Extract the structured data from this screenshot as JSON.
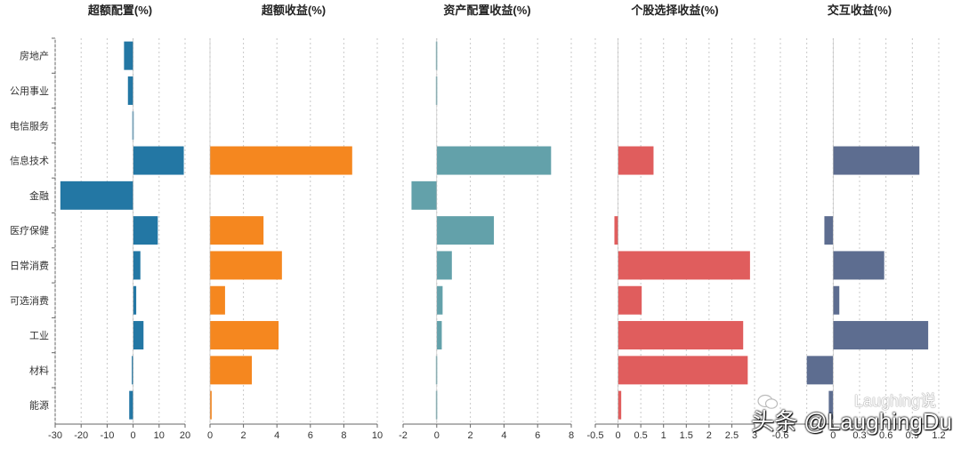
{
  "chart_data": {
    "type": "bar",
    "orientation": "horizontal",
    "categories": [
      "房地产",
      "公用事业",
      "电信服务",
      "信息技术",
      "金融",
      "医疗保健",
      "日常消费",
      "可选消费",
      "工业",
      "材料",
      "能源"
    ],
    "panels": [
      {
        "title": "超额配置(%)",
        "color": "#2377a4",
        "xlim": [
          -30,
          20
        ],
        "xticks": [
          -30,
          -20,
          -10,
          0,
          10,
          20
        ],
        "values": [
          -3.5,
          -2.0,
          -0.3,
          19.5,
          -28.0,
          9.5,
          2.8,
          1.2,
          4.0,
          -0.5,
          -1.5
        ]
      },
      {
        "title": "超额收益(%)",
        "color": "#f5871f",
        "xlim": [
          0,
          10
        ],
        "xticks": [
          0,
          2,
          4,
          6,
          8,
          10
        ],
        "values": [
          0,
          0,
          0,
          8.5,
          0,
          3.2,
          4.3,
          0.9,
          4.1,
          2.5,
          0.1
        ]
      },
      {
        "title": "资产配置收益(%)",
        "color": "#63a1aa",
        "xlim": [
          -2,
          8
        ],
        "xticks": [
          -2,
          0,
          2,
          4,
          6,
          8
        ],
        "values": [
          -0.05,
          -0.05,
          0,
          6.8,
          -1.5,
          3.4,
          0.9,
          0.35,
          0.3,
          -0.05,
          -0.05
        ]
      },
      {
        "title": "个股选择收益(%)",
        "color": "#e05d5d",
        "xlim": [
          -0.5,
          3
        ],
        "xticks": [
          -0.5,
          0,
          0.5,
          1,
          1.5,
          2,
          2.5,
          3
        ],
        "tick_labels": [
          "-0.5",
          "0",
          "0.5",
          "1",
          "1.5",
          "2",
          "2.5",
          "3"
        ],
        "values": [
          0,
          0,
          0,
          0.78,
          0,
          -0.08,
          2.9,
          0.52,
          2.75,
          2.85,
          0.07
        ]
      },
      {
        "title": "交互收益(%)",
        "color": "#5d6d90",
        "xlim": [
          -0.6,
          1.2
        ],
        "xticks": [
          -0.6,
          -0.3,
          0,
          0.3,
          0.6,
          0.9,
          1.2
        ],
        "tick_labels": [
          "-0.6",
          "",
          "0",
          "0.3",
          "0.6",
          "0.9",
          "1.2"
        ],
        "values": [
          0,
          0,
          0,
          0.98,
          0,
          -0.1,
          0.58,
          0.07,
          1.08,
          -0.3,
          -0.05
        ]
      }
    ]
  },
  "watermark": {
    "small": "Laughing说",
    "main": "头条 @LaughingDu"
  }
}
